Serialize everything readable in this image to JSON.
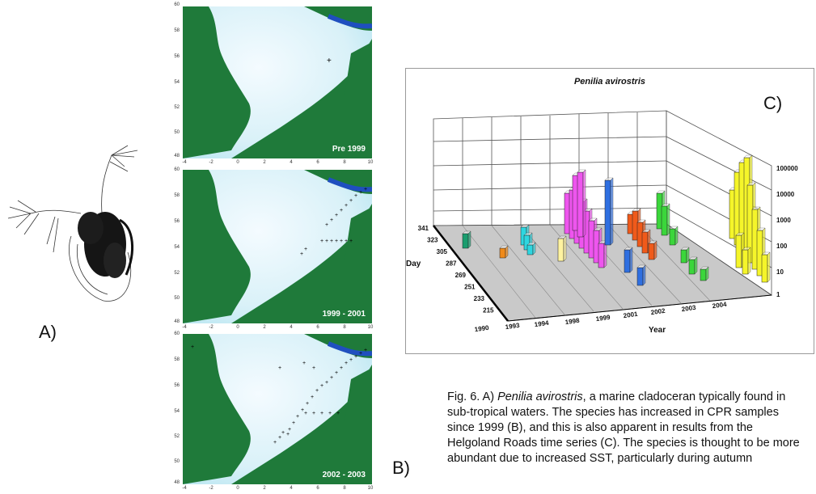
{
  "panels": {
    "a": "A)",
    "b": "B)",
    "c": "C)"
  },
  "maps": {
    "y_ticks": [
      "60",
      "58",
      "56",
      "54",
      "52",
      "50",
      "48"
    ],
    "x_ticks": [
      "-4",
      "-2",
      "0",
      "2",
      "4",
      "6",
      "8",
      "10"
    ],
    "items": [
      {
        "label": "Pre 1999"
      },
      {
        "label": "1999 - 2001"
      },
      {
        "label": "2002 - 2003"
      }
    ]
  },
  "chart_data": {
    "type": "bar",
    "title": "Penilia avirostris",
    "xlabel": "Year",
    "ylabel": "Day",
    "zlabel": "",
    "years": [
      "1990",
      "1993",
      "1994",
      "1998",
      "1999",
      "2001",
      "2002",
      "2003",
      "2004"
    ],
    "day_ticks": [
      "341",
      "323",
      "305",
      "287",
      "269",
      "251",
      "233",
      "215"
    ],
    "z_ticks": [
      "100000",
      "10000",
      "1000",
      "100",
      "10",
      "1"
    ],
    "z_scale": "log",
    "colors": [
      "#1a9d6e",
      "#f08a1a",
      "#2ed6e0",
      "#fff3a0",
      "#ee55ee",
      "#2f6fe0",
      "#f05a1a",
      "#3bd63b",
      "#f5f52a"
    ]
  },
  "caption": {
    "prefix": "Fig. 6. A) ",
    "species": "Penilia avirostris",
    "rest": ", a marine cladoceran typically found in sub-tropical waters. The species has increased in CPR samples since 1999 (B), and this is also apparent in results from the Helgoland Roads time series (C). The species is thought to be more abundant due to increased SST, particularly during autumn"
  }
}
